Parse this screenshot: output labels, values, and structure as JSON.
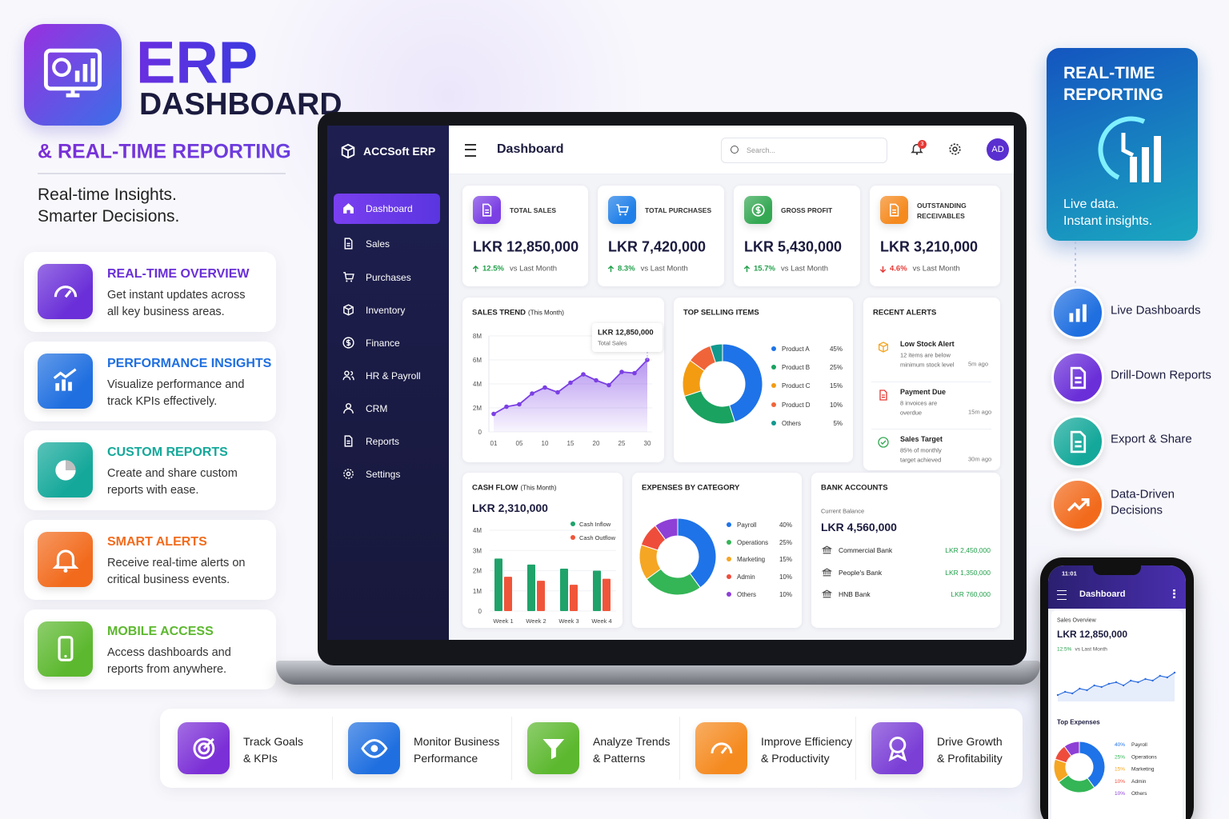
{
  "header": {
    "title": "ERP",
    "subtitle": "DASHBOARD",
    "tagline": "& REAL-TIME REPORTING",
    "slogan": [
      "Real-time Insights.",
      "Smarter Decisions."
    ]
  },
  "features": [
    {
      "title": "REAL-TIME OVERVIEW",
      "text": [
        "Get instant updates across",
        "all key business areas."
      ],
      "color": "#6a2fd8"
    },
    {
      "title": "PERFORMANCE INSIGHTS",
      "text": [
        "Visualize performance and",
        "track KPIs effectively."
      ],
      "color": "#1f6fe0"
    },
    {
      "title": "CUSTOM REPORTS",
      "text": [
        "Create and share custom",
        "reports with ease."
      ],
      "color": "#14a89a"
    },
    {
      "title": "SMART ALERTS",
      "text": [
        "Receive real-time alerts on",
        "critical business events."
      ],
      "color": "#f26b1d"
    },
    {
      "title": "MOBILE ACCESS",
      "text": [
        "Access dashboards and",
        "reports from anywhere."
      ],
      "color": "#5cb82e"
    }
  ],
  "reporting_card": {
    "title": [
      "REAL-TIME",
      "REPORTING"
    ],
    "text": [
      "Live data.",
      "Instant insights."
    ]
  },
  "highlights": [
    {
      "label": [
        "Live Dashboards"
      ],
      "color": "#1f6fe0"
    },
    {
      "label": [
        "Drill-Down Reports"
      ],
      "color": "#6a2fd8"
    },
    {
      "label": [
        "Export & Share"
      ],
      "color": "#14a89a"
    },
    {
      "label": [
        "Data-Driven",
        "Decisions"
      ],
      "color": "#f26b1d"
    }
  ],
  "benefits": [
    {
      "label": [
        "Track Goals",
        "& KPIs"
      ],
      "color": "#7b2fd6"
    },
    {
      "label": [
        "Monitor Business",
        "Performance"
      ],
      "color": "#1f6fe0"
    },
    {
      "label": [
        "Analyze Trends",
        "& Patterns"
      ],
      "color": "#5cb82e"
    },
    {
      "label": [
        "Improve Efficiency",
        "& Productivity"
      ],
      "color": "#f58a1f"
    },
    {
      "label": [
        "Drive Growth",
        "& Profitability"
      ],
      "color": "#7b3fd6"
    }
  ],
  "dashboard": {
    "brand": "ACCSoft ERP",
    "page_title": "Dashboard",
    "search_placeholder": "Search...",
    "notifications": 3,
    "avatar": "AD",
    "nav": [
      {
        "label": "Dashboard",
        "active": true
      },
      {
        "label": "Sales"
      },
      {
        "label": "Purchases"
      },
      {
        "label": "Inventory"
      },
      {
        "label": "Finance"
      },
      {
        "label": "HR & Payroll"
      },
      {
        "label": "CRM"
      },
      {
        "label": "Reports"
      },
      {
        "label": "Settings"
      }
    ],
    "kpis": [
      {
        "label": [
          "TOTAL SALES"
        ],
        "value": "LKR 12,850,000",
        "change": "12.5%",
        "compare": "vs Last Month",
        "trend": "up",
        "color": "#7b3fe4"
      },
      {
        "label": [
          "TOTAL PURCHASES"
        ],
        "value": "LKR 7,420,000",
        "change": "8.3%",
        "compare": "vs Last Month",
        "trend": "up",
        "color": "#1f7fe8"
      },
      {
        "label": [
          "GROSS PROFIT"
        ],
        "value": "LKR 5,430,000",
        "change": "15.7%",
        "compare": "vs Last Month",
        "trend": "up",
        "color": "#34a853"
      },
      {
        "label": [
          "OUTSTANDING",
          "RECEIVABLES"
        ],
        "value": "LKR 3,210,000",
        "change": "4.6%",
        "compare": "vs Last Month",
        "trend": "down",
        "color": "#f58a1f"
      }
    ],
    "sales_trend": {
      "type": "line",
      "title": "SALES TREND",
      "subtitle": "(This Month)",
      "categories": [
        "01",
        null,
        "05",
        null,
        "10",
        null,
        "15",
        null,
        "20",
        null,
        "25",
        null,
        "30"
      ],
      "values": [
        1.5,
        2.1,
        2.3,
        3.2,
        3.7,
        3.3,
        4.1,
        4.8,
        4.3,
        3.9,
        5.0,
        4.9,
        6.0
      ],
      "ylim": [
        0,
        8
      ],
      "yticks": [
        0,
        {
          "value": 2,
          "label": "2M"
        },
        {
          "value": 4,
          "label": "4M"
        },
        {
          "value": 6,
          "label": "6M"
        },
        {
          "value": 8,
          "label": "8M"
        }
      ],
      "color": "#7b3fe4",
      "tooltip": {
        "value": "LKR 12,850,000",
        "label": "Total Sales"
      }
    },
    "top_selling": {
      "type": "pie",
      "title": "TOP SELLING ITEMS",
      "categories": [
        "Product A",
        "Product B",
        "Product C",
        "Product D",
        "Others"
      ],
      "values": [
        45,
        25,
        15,
        10,
        5
      ],
      "value_labels": [
        "45%",
        "25%",
        "15%",
        "10%",
        "5%"
      ],
      "colors": [
        "#1e73e8",
        "#1aa260",
        "#f39c12",
        "#f0643a",
        "#11998e"
      ]
    },
    "recent_alerts": {
      "title": "RECENT ALERTS",
      "items": [
        {
          "title": "Low Stock Alert",
          "text": [
            "12 items are below",
            "minimum stock level"
          ],
          "time": "5m ago",
          "color": "#f5a623"
        },
        {
          "title": "Payment Due",
          "text": [
            "8 invoices are",
            "overdue"
          ],
          "time": "15m ago",
          "color": "#e53935"
        },
        {
          "title": "Sales Target",
          "text": [
            "85% of monthly",
            "target achieved"
          ],
          "time": "30m ago",
          "color": "#34a853"
        }
      ]
    },
    "cash_flow": {
      "type": "bar",
      "title": "CASH FLOW",
      "subtitle": "(This Month)",
      "total": "LKR 2,310,000",
      "categories": [
        "Week 1",
        "Week 2",
        "Week 3",
        "Week 4"
      ],
      "series": [
        {
          "name": "Cash Inflow",
          "color": "#1fa36a",
          "values": [
            2.6,
            2.3,
            2.1,
            2.0
          ]
        },
        {
          "name": "Cash Outflow",
          "color": "#f0553a",
          "values": [
            1.7,
            1.5,
            1.3,
            1.6
          ]
        }
      ],
      "ylim": [
        0,
        4
      ],
      "yticks": [
        0,
        {
          "value": 1,
          "label": "1M"
        },
        {
          "value": 2,
          "label": "2M"
        },
        {
          "value": 3,
          "label": "3M"
        },
        {
          "value": 4,
          "label": "4M"
        }
      ]
    },
    "expenses": {
      "type": "pie",
      "title": "EXPENSES BY CATEGORY",
      "categories": [
        "Payroll",
        "Operations",
        "Marketing",
        "Admin",
        "Others"
      ],
      "values": [
        40,
        25,
        15,
        10,
        10
      ],
      "value_labels": [
        "40%",
        "25%",
        "15%",
        "10%",
        "10%"
      ],
      "colors": [
        "#1e73e8",
        "#34b556",
        "#f5a623",
        "#ef4d3c",
        "#8e3fd6"
      ]
    },
    "bank_accounts": {
      "title": "BANK ACCOUNTS",
      "balance_label": "Current Balance",
      "balance": "LKR 4,560,000",
      "accounts": [
        {
          "name": "Commercial Bank",
          "amount": "LKR 2,450,000"
        },
        {
          "name": "People's Bank",
          "amount": "LKR 1,350,000"
        },
        {
          "name": "HNB Bank",
          "amount": "LKR 760,000"
        }
      ]
    }
  },
  "phone": {
    "time": "11:01",
    "title": "Dashboard",
    "overview_label": "Sales Overview",
    "value": "LKR 12,850,000",
    "change": "12.5%",
    "compare": "vs Last Month",
    "trend": {
      "type": "line",
      "values": [
        2,
        3,
        2.5,
        4,
        3.5,
        5,
        4.5,
        5.5,
        6,
        5,
        6.5,
        6,
        7,
        6.5,
        8,
        7.5,
        9
      ],
      "color": "#2f6fe0"
    },
    "expenses_title": "Top Expenses",
    "expenses": {
      "type": "pie",
      "categories": [
        "Payroll",
        "Operations",
        "Marketing",
        "Admin",
        "Others"
      ],
      "values": [
        40,
        25,
        15,
        10,
        10
      ],
      "value_labels": [
        "40%",
        "25%",
        "15%",
        "10%",
        "10%"
      ],
      "colors": [
        "#1e73e8",
        "#34b556",
        "#f5a623",
        "#ef4d3c",
        "#8e3fd6"
      ]
    }
  }
}
